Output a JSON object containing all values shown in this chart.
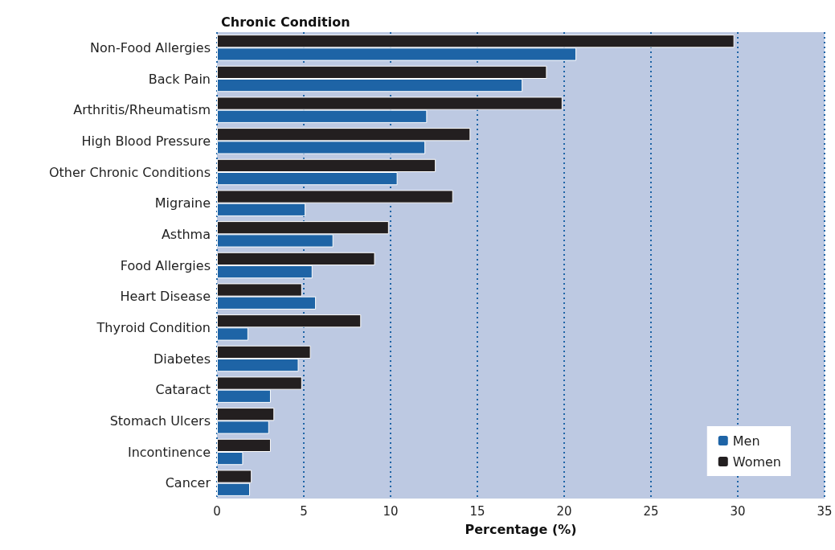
{
  "chart_data": {
    "type": "bar",
    "orientation": "horizontal",
    "title": "Chronic Condition",
    "xlabel": "Percentage (%)",
    "categories": [
      "Non-Food Allergies",
      "Back Pain",
      "Arthritis/Rheumatism",
      "High Blood Pressure",
      "Other Chronic Conditions",
      "Migraine",
      "Asthma",
      "Food Allergies",
      "Heart Disease",
      "Thyroid Condition",
      "Diabetes",
      "Cataract",
      "Stomach Ulcers",
      "Incontinence",
      "Cancer"
    ],
    "series": [
      {
        "name": "Women",
        "color": "#231f20",
        "values": [
          29.8,
          19.0,
          19.9,
          14.6,
          12.6,
          13.6,
          9.9,
          9.1,
          4.9,
          8.3,
          5.4,
          4.9,
          3.3,
          3.1,
          2.0
        ]
      },
      {
        "name": "Men",
        "color": "#1e64a6",
        "values": [
          20.7,
          17.6,
          12.1,
          12.0,
          10.4,
          5.1,
          6.7,
          5.5,
          5.7,
          1.8,
          4.7,
          3.1,
          3.0,
          1.5,
          1.9
        ]
      }
    ],
    "xlim": [
      0,
      35
    ],
    "xticks": [
      0,
      5,
      10,
      15,
      20,
      25,
      30,
      35
    ],
    "grid": "x",
    "legend": "bottom right"
  }
}
